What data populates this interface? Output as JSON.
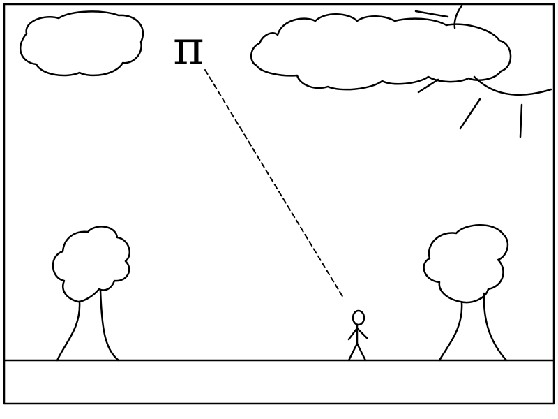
{
  "symbol": "π",
  "colors": {
    "ink": "#000000",
    "paper": "#ffffff"
  },
  "elements": {
    "frame": "frame",
    "ground": "ground-strip",
    "cloud_left": "cloud-icon",
    "cloud_right": "cloud-icon",
    "sun": "sun-icon",
    "tree_left": "tree-icon",
    "tree_right": "tree-icon",
    "person": "stick-figure-icon",
    "sight_line": "dashed-line"
  }
}
